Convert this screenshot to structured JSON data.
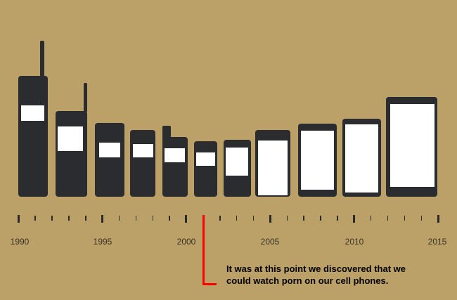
{
  "colors": {
    "background": "#bba167",
    "phone": "#2a2c30",
    "screen": "#ffffff",
    "annotation": "#ff0000"
  },
  "phones_count_label": "",
  "timeline": {
    "years": [
      "1990",
      "1995",
      "2000",
      "2005",
      "2010",
      "2015"
    ]
  },
  "annotation": {
    "line1": "It was at this point we discovered that we",
    "line2": "could watch porn on our cell phones."
  }
}
